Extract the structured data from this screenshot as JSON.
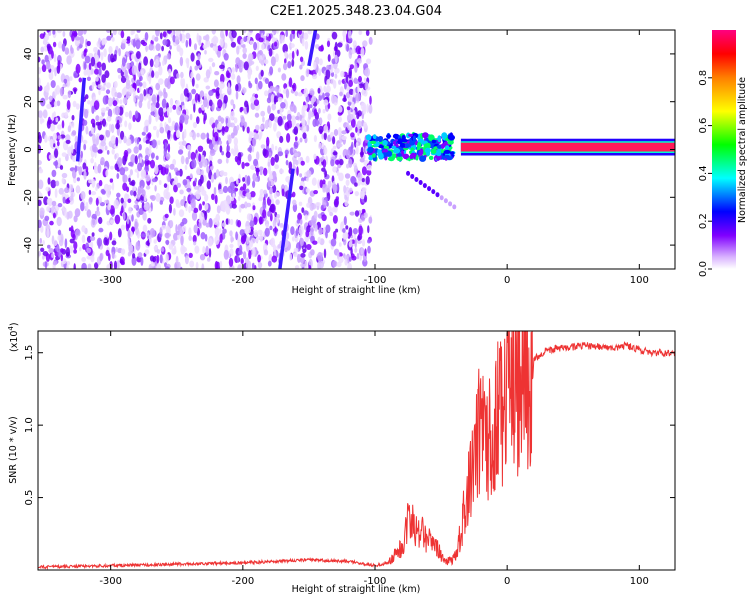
{
  "title": "C2E1.2025.348.23.04.G04",
  "chart_data": [
    {
      "type": "heatmap",
      "xlabel": "Height of straight line (km)",
      "ylabel": "Frequency (Hz)",
      "xlim": [
        -355,
        127
      ],
      "ylim": [
        -50,
        50
      ],
      "xticks": [
        -300,
        -200,
        -100,
        0,
        100
      ],
      "yticks": [
        -40,
        -20,
        0,
        20,
        40
      ],
      "colorbar": {
        "label": "Normalized spectral amplitude",
        "range": [
          0,
          1
        ],
        "ticks": [
          0.0,
          0.2,
          0.4,
          0.6,
          0.8
        ],
        "tick_labels": [
          "0.0",
          "0.2",
          "0.4",
          "0.6",
          "0.8"
        ],
        "colors": [
          "#ffffff",
          "#d9b3ff",
          "#8000ff",
          "#0000ff",
          "#00ffff",
          "#00ff00",
          "#ffff00",
          "#ff8000",
          "#ff0000",
          "#ff0080"
        ]
      },
      "regions": {
        "noise": {
          "x": [
            -355,
            -103
          ],
          "y": [
            -50,
            50
          ],
          "amplitude": 0.1
        },
        "signal_track": {
          "x": [
            -105,
            127
          ],
          "frequency": [
            0,
            2
          ],
          "amplitude_start": 0.35,
          "amplitude_end": 0.9
        },
        "diagonal_streaks": [
          {
            "x": [
              -172,
              -162
            ],
            "y": [
              -50,
              -8
            ]
          },
          {
            "x": [
              -150,
              -145
            ],
            "y": [
              35,
              50
            ]
          },
          {
            "x": [
              -325,
              -320
            ],
            "y": [
              -5,
              30
            ]
          }
        ]
      }
    },
    {
      "type": "line",
      "xlabel": "Height of straight line (km)",
      "ylabel": "SNR (10 * v/v)",
      "scale_label": "(x10",
      "scale_exponent": "4",
      "xlim": [
        -355,
        127
      ],
      "ylim": [
        0,
        1.65
      ],
      "xticks": [
        -300,
        -200,
        -100,
        0,
        100
      ],
      "yticks": [
        0.5,
        1.0,
        1.5
      ],
      "ytick_labels": [
        "0.5",
        "1.0",
        "1.5"
      ],
      "series": [
        {
          "color": "#ee3333",
          "x": [
            -355,
            -300,
            -250,
            -200,
            -150,
            -120,
            -100,
            -90,
            -80,
            -75,
            -70,
            -65,
            -60,
            -55,
            -50,
            -45,
            -40,
            -35,
            -30,
            -25,
            -20,
            -15,
            -10,
            -5,
            0,
            10,
            20,
            30,
            40,
            50,
            60,
            70,
            80,
            90,
            100,
            110,
            127
          ],
          "y": [
            0.02,
            0.03,
            0.04,
            0.05,
            0.07,
            0.06,
            0.03,
            0.05,
            0.15,
            0.35,
            0.3,
            0.28,
            0.22,
            0.18,
            0.1,
            0.06,
            0.08,
            0.25,
            0.55,
            0.8,
            1.0,
            0.95,
            1.0,
            1.1,
            1.2,
            1.3,
            1.45,
            1.52,
            1.53,
            1.54,
            1.55,
            1.54,
            1.53,
            1.55,
            1.52,
            1.5,
            1.5
          ]
        }
      ]
    }
  ]
}
